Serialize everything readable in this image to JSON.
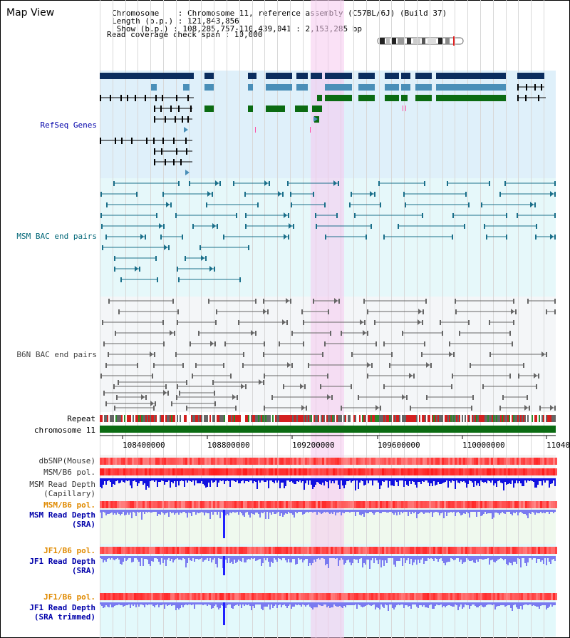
{
  "header": {
    "title": "Map View",
    "info_lines": [
      "Chromosome    : Chromosome 11, reference assembly (C57BL/6J) (Build 37)",
      "Length (b.p.) : 121,843,856",
      " Show (b.p.) : 108,285,757-110,439,041 : 2,153,285 bp",
      "Read coverage check span : 10,000"
    ]
  },
  "tracks": {
    "refseq": "RefSeq Genes",
    "msm_bac": "MSM BAC end pairs",
    "b6n_bac": "B6N BAC end pairs",
    "repeat": "Repeat",
    "chromosome": "chromosome 11",
    "dbsnp": "dbSNP(Mouse)",
    "msm_b6_pol_1": "MSM/B6 pol.",
    "msm_read_depth_cap": "MSM Read Depth\n(Capillary)",
    "msm_b6_pol_2": "MSM/B6 pol.",
    "msm_read_depth_sra": "MSM Read Depth\n(SRA)",
    "jf1_b6_pol_1": "JF1/B6 pol.",
    "jf1_read_depth_sra": "JF1 Read Depth\n(SRA)",
    "jf1_b6_pol_2": "JF1/B6 pol.",
    "jf1_read_depth_trim": "JF1 Read Depth\n(SRA trimmed)"
  },
  "axis": {
    "ticks": [
      "108400000",
      "108800000",
      "109200000",
      "109600000",
      "110000000",
      "11040"
    ]
  },
  "colors": {
    "highlight": "#f6c8ee",
    "refseq_bg": "#dff0fa",
    "msm_bg": "#e6f8fa",
    "b6n_bg": "#f4f6f8",
    "gene_dark": "#0b2d5e",
    "gene_mid": "#4a8fb8",
    "gene_green": "#0b6b12",
    "msm_pair": "#1a6f8a",
    "b6n_pair": "#666666",
    "pol_red": "#ff6666",
    "depth_blue": "#1010e0",
    "depth_light": "#7a7af0",
    "label_orange": "#e08a00",
    "label_blue": "#0000aa",
    "label_teal": "#006677"
  }
}
